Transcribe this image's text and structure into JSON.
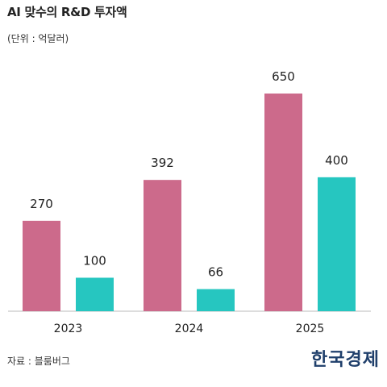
{
  "header": {
    "title": "AI 맞수의 R&D 투자액",
    "unit": "(단위 : 억달러)"
  },
  "footer": {
    "source": "자료 : 블룸버그",
    "logo_text": "한국경제"
  },
  "colors": {
    "series_a": "#cc6a8b",
    "series_b": "#26c6c0",
    "axis": "#bbbbbb"
  },
  "chart_data": {
    "type": "bar",
    "title": "AI 맞수의 R&D 투자액",
    "ylabel": "(단위 : 억달러)",
    "categories": [
      "2023",
      "2024",
      "2025"
    ],
    "series": [
      {
        "values": [
          270,
          392,
          650
        ]
      },
      {
        "values": [
          100,
          66,
          400
        ]
      }
    ],
    "ylim": [
      0,
      700
    ],
    "grid": false,
    "legend": "none"
  }
}
